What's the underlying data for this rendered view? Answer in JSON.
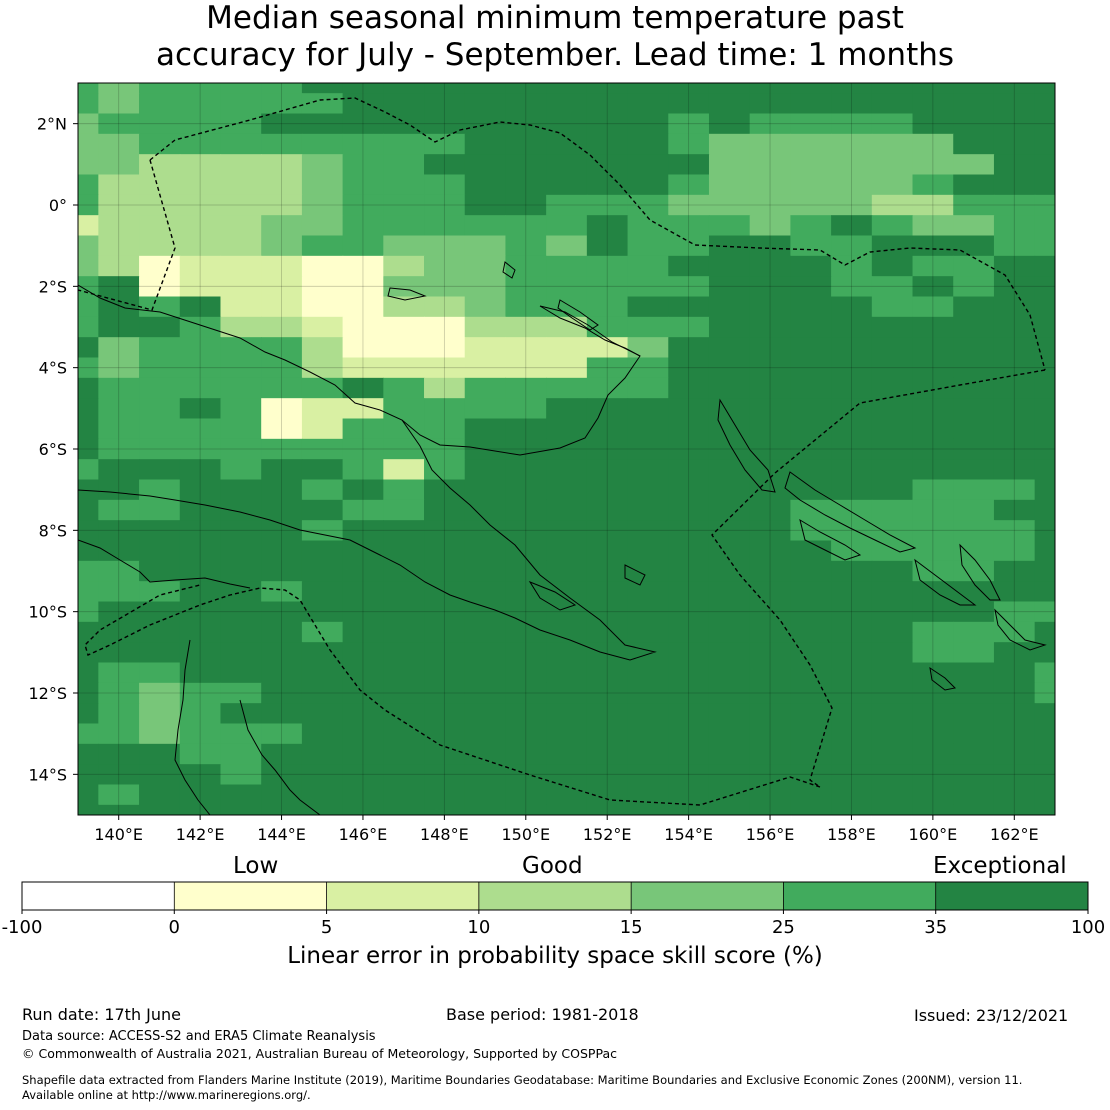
{
  "title": {
    "line1": "Median seasonal minimum temperature past",
    "line2": "accuracy for July - September. Lead time: 1 months"
  },
  "map": {
    "lon_range": [
      139,
      163
    ],
    "lat_range": [
      -15,
      3
    ],
    "lon_ticks": [
      "140°E",
      "142°E",
      "144°E",
      "146°E",
      "148°E",
      "150°E",
      "152°E",
      "154°E",
      "156°E",
      "158°E",
      "160°E",
      "162°E"
    ],
    "lat_ticks": [
      "2°N",
      "0°",
      "2°S",
      "4°S",
      "6°S",
      "8°S",
      "10°S",
      "12°S",
      "14°S"
    ]
  },
  "colorbar": {
    "categories": [
      "Low",
      "Good",
      "Exceptional"
    ],
    "ticks": [
      "-100",
      "0",
      "5",
      "10",
      "15",
      "25",
      "35",
      "100"
    ],
    "colors": [
      "#ffffff",
      "#ffffcc",
      "#d9f0a3",
      "#addd8e",
      "#78c679",
      "#41ab5d",
      "#238443"
    ],
    "label": "Linear error in probability space skill score (%)"
  },
  "footer": {
    "run_date": "Run date: 17th June",
    "base_period": "Base period: 1981-2018",
    "issued": "Issued: 23/12/2021",
    "data_source": "Data source: ACCESS-S2 and ERA5 Climate Reanalysis",
    "copyright": "© Commonwealth of Australia 2021, Australian Bureau of Meteorology, Supported by COSPPac",
    "shapefile_line1": "Shapefile data extracted from Flanders Marine Institute (2019), Maritime Boundaries Geodatabase: Maritime Boundaries and Exclusive Economic Zones (200NM), version 11.",
    "shapefile_line2": "Available online at http://www.marineregions.org/."
  }
}
